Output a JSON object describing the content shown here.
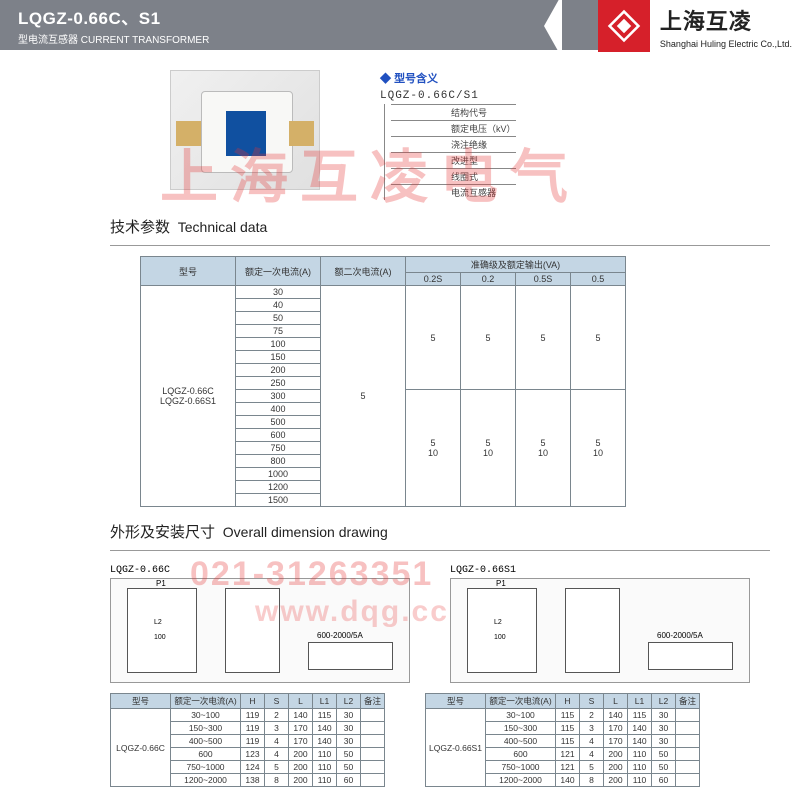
{
  "header": {
    "model": "LQGZ-0.66C、S1",
    "subtitle_cn": "型电流互感器",
    "subtitle_en": "CURRENT TRANSFORMER",
    "brand_cn": "上海互凌",
    "brand_en": "Shanghai Huling Electric Co.,Ltd."
  },
  "model_meaning": {
    "title": "型号含义",
    "code": "LQGZ-0.66C/S1",
    "items": [
      "结构代号",
      "额定电压（kV）",
      "浇注绝缘",
      "改进型",
      "线圈式",
      "电流互感器"
    ]
  },
  "tech": {
    "heading_cn": "技术参数",
    "heading_en": "Technical data",
    "cols": {
      "model": "型号",
      "primary": "额定一次电流(A)",
      "secondary": "额二次电流(A)",
      "accuracy": "准确级及额定输出(VA)",
      "a1": "0.2S",
      "a2": "0.2",
      "a3": "0.5S",
      "a4": "0.5"
    },
    "model_label": "LQGZ-0.66C\nLQGZ-0.66S1",
    "secondary_val": "5",
    "primaries": [
      "30",
      "40",
      "50",
      "75",
      "100",
      "150",
      "200",
      "250",
      "300",
      "400",
      "500",
      "600",
      "750",
      "800",
      "1000",
      "1200",
      "1500"
    ],
    "out_top": "5",
    "out_bot1": "5",
    "out_bot2": "10"
  },
  "dim": {
    "heading_cn": "外形及安装尺寸",
    "heading_en": "Overall dimension drawing",
    "labels": [
      "LQGZ-0.66C",
      "LQGZ-0.66S1"
    ],
    "range": "600-2000/5A",
    "cols": {
      "model": "型号",
      "cur": "额定一次电流(A)",
      "H": "H",
      "S": "S",
      "L": "L",
      "L1": "L1",
      "L2": "L2",
      "note": "备注"
    },
    "t1": {
      "model": "LQGZ-0.66C",
      "rows": [
        [
          "30~100",
          "119",
          "2",
          "140",
          "115",
          "30",
          ""
        ],
        [
          "150~300",
          "119",
          "3",
          "170",
          "140",
          "30",
          ""
        ],
        [
          "400~500",
          "119",
          "4",
          "170",
          "140",
          "30",
          ""
        ],
        [
          "600",
          "123",
          "4",
          "200",
          "110",
          "50",
          ""
        ],
        [
          "750~1000",
          "124",
          "5",
          "200",
          "110",
          "50",
          ""
        ],
        [
          "1200~2000",
          "138",
          "8",
          "200",
          "110",
          "60",
          ""
        ]
      ]
    },
    "t2": {
      "model": "LQGZ-0.66S1",
      "rows": [
        [
          "30~100",
          "115",
          "2",
          "140",
          "115",
          "30",
          ""
        ],
        [
          "150~300",
          "115",
          "3",
          "170",
          "140",
          "30",
          ""
        ],
        [
          "400~500",
          "115",
          "4",
          "170",
          "140",
          "30",
          ""
        ],
        [
          "600",
          "121",
          "4",
          "200",
          "110",
          "50",
          ""
        ],
        [
          "750~1000",
          "121",
          "5",
          "200",
          "110",
          "50",
          ""
        ],
        [
          "1200~2000",
          "140",
          "8",
          "200",
          "110",
          "60",
          ""
        ]
      ]
    }
  },
  "watermark": {
    "cn": "上海互凌电气",
    "phone": "021-31263351",
    "url": "www.dqg.cc"
  },
  "colors": {
    "header": "#7d8189",
    "brand_red": "#d6202a",
    "th_bg": "#c4d6e4",
    "accent": "#2050c0"
  }
}
